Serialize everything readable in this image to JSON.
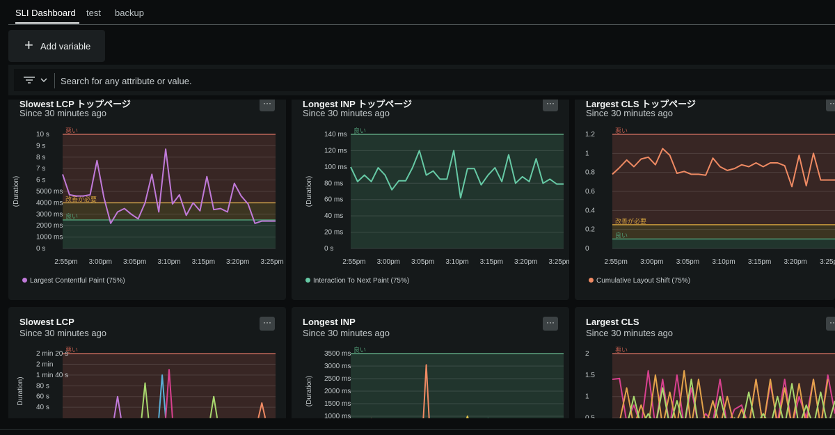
{
  "tabs": [
    {
      "label": "SLI Dashboard",
      "active": true
    },
    {
      "label": "test",
      "active": false
    },
    {
      "label": "backup",
      "active": false
    }
  ],
  "toolbar": {
    "add_variable_label": "Add variable"
  },
  "filter": {
    "placeholder": "Search for any attribute or value."
  },
  "menu_label": "···",
  "colors": {
    "bad": "#b8584a",
    "needs": "#c99a3c",
    "good": "#4f9a74",
    "lcp": "#c07ad9",
    "inp": "#66c9a5",
    "cls": "#ef8a63"
  },
  "panels": [
    {
      "title": "Slowest LCP トップページ",
      "subtitle": "Since 30 minutes ago",
      "ylabel": "(Duration)",
      "legend": "Largest Contentful Paint (75%)",
      "legend_color": "#c07ad9"
    },
    {
      "title": "Longest INP トップページ",
      "subtitle": "Since 30 minutes ago",
      "ylabel": "(Duration)",
      "legend": "Interaction To Next Paint (75%)",
      "legend_color": "#66c9a5"
    },
    {
      "title": "Largest CLS トップページ",
      "subtitle": "Since 30 minutes ago",
      "ylabel": "",
      "legend": "Cumulative Layout Shift (75%)",
      "legend_color": "#ef8a63"
    },
    {
      "title": "Slowest LCP",
      "subtitle": "Since 30 minutes ago",
      "ylabel": "Duration)"
    },
    {
      "title": "Longest INP",
      "subtitle": "Since 30 minutes ago",
      "ylabel": "(Duration)"
    },
    {
      "title": "Largest CLS",
      "subtitle": "Since 30 minutes ago",
      "ylabel": ""
    }
  ],
  "chart_data": [
    {
      "type": "line",
      "panel": "Slowest LCP トップページ",
      "yticks": [
        "10 s",
        "9 s",
        "8 s",
        "7 s",
        "6 s",
        "5000 ms",
        "4000 ms",
        "3000 ms",
        "2000 ms",
        "1000 ms",
        "0 s"
      ],
      "ytick_values": [
        10000,
        9000,
        8000,
        7000,
        6000,
        5000,
        4000,
        3000,
        2000,
        1000,
        0
      ],
      "ylim": [
        0,
        10000
      ],
      "xticks": [
        "2:55pm",
        "3:00pm",
        "3:05pm",
        "3:10pm",
        "3:15pm",
        "3:20pm",
        "3:25pm"
      ],
      "xlim": [
        -3,
        28
      ],
      "zones": [
        {
          "label": "悪い",
          "from": 4000,
          "to": 10000,
          "color": "#b8584a"
        },
        {
          "label": "改善が必要",
          "from": 2500,
          "to": 4000,
          "color": "#c99a3c"
        },
        {
          "label": "良い",
          "from": 0,
          "to": 2500,
          "color": "#4f9a74"
        }
      ],
      "series": [
        {
          "name": "Largest Contentful Paint (75%)",
          "color": "#c07ad9",
          "x": [
            -3,
            -2,
            -1,
            0,
            1,
            2,
            3,
            4,
            5,
            6,
            7,
            8,
            9,
            10,
            11,
            12,
            13,
            14,
            15,
            16,
            17,
            18,
            19,
            20,
            21,
            22,
            23,
            24,
            25,
            26,
            27,
            28
          ],
          "values": [
            6500,
            4700,
            4600,
            4600,
            4700,
            7700,
            4500,
            2200,
            3200,
            3500,
            3000,
            2600,
            4000,
            6500,
            3200,
            8700,
            3900,
            4700,
            2900,
            4000,
            3300,
            6300,
            3400,
            3500,
            3200,
            5700,
            4600,
            3900,
            2200,
            2400,
            2400,
            2400
          ]
        }
      ]
    },
    {
      "type": "line",
      "panel": "Longest INP トップページ",
      "yticks": [
        "140 ms",
        "120 ms",
        "100 ms",
        "80 ms",
        "60 ms",
        "40 ms",
        "20 ms",
        "0 s"
      ],
      "ytick_values": [
        140,
        120,
        100,
        80,
        60,
        40,
        20,
        0
      ],
      "ylim": [
        0,
        140
      ],
      "xticks": [
        "2:55pm",
        "3:00pm",
        "3:05pm",
        "3:10pm",
        "3:15pm",
        "3:20pm",
        "3:25pm"
      ],
      "xlim": [
        -3,
        28
      ],
      "zones": [
        {
          "label": "良い",
          "from": 0,
          "to": 140,
          "color": "#4f9a74"
        }
      ],
      "series": [
        {
          "name": "Interaction To Next Paint (75%)",
          "color": "#66c9a5",
          "x": [
            -3,
            -2,
            -1,
            0,
            1,
            2,
            3,
            4,
            5,
            6,
            7,
            8,
            9,
            10,
            11,
            12,
            13,
            14,
            15,
            16,
            17,
            18,
            19,
            20,
            21,
            22,
            23,
            24,
            25,
            26,
            27,
            28
          ],
          "values": [
            100,
            82,
            90,
            82,
            99,
            90,
            72,
            83,
            83,
            99,
            120,
            90,
            95,
            85,
            85,
            120,
            62,
            98,
            98,
            78,
            90,
            99,
            82,
            115,
            80,
            88,
            82,
            110,
            80,
            85,
            79,
            79
          ]
        }
      ]
    },
    {
      "type": "line",
      "panel": "Largest CLS トップページ",
      "yticks": [
        "1.2",
        "1",
        "0.8",
        "0.6",
        "0.4",
        "0.2",
        "0"
      ],
      "ytick_values": [
        1.2,
        1,
        0.8,
        0.6,
        0.4,
        0.2,
        0
      ],
      "ylim": [
        0,
        1.2
      ],
      "xticks": [
        "2:55pm",
        "3:00pm",
        "3:05pm",
        "3:10pm",
        "3:15pm",
        "3:20pm",
        "3:25pm"
      ],
      "xlim": [
        -3,
        28
      ],
      "zones": [
        {
          "label": "悪い",
          "from": 0.25,
          "to": 1.2,
          "color": "#b8584a"
        },
        {
          "label": "改善が必要",
          "from": 0.1,
          "to": 0.25,
          "color": "#c99a3c"
        },
        {
          "label": "良い",
          "from": 0,
          "to": 0.1,
          "color": "#4f9a74"
        }
      ],
      "series": [
        {
          "name": "Cumulative Layout Shift (75%)",
          "color": "#ef8a63",
          "x": [
            -3,
            -2,
            -1,
            0,
            1,
            2,
            3,
            4,
            5,
            6,
            7,
            8,
            9,
            10,
            11,
            12,
            13,
            14,
            15,
            16,
            17,
            18,
            19,
            20,
            21,
            22,
            23,
            24,
            25,
            26,
            27,
            28
          ],
          "values": [
            0.78,
            0.85,
            0.93,
            0.86,
            0.94,
            0.96,
            0.88,
            1.05,
            0.98,
            0.79,
            0.81,
            0.78,
            0.78,
            0.77,
            0.95,
            0.86,
            0.82,
            0.84,
            0.88,
            0.86,
            0.9,
            0.86,
            0.9,
            0.9,
            0.87,
            0.65,
            0.98,
            0.66,
            1.0,
            0.72,
            0.72,
            0.72
          ]
        }
      ]
    },
    {
      "type": "line",
      "panel": "Slowest LCP",
      "yticks": [
        "2 min 20 s",
        "2 min",
        "1 min 40 s",
        "80 s",
        "60 s",
        "40 s"
      ],
      "ytick_values": [
        140,
        120,
        100,
        80,
        60,
        40
      ],
      "ylim": [
        0,
        140
      ],
      "zones": [
        {
          "label": "悪い",
          "from": 4,
          "to": 140,
          "color": "#b8584a"
        }
      ],
      "series": [
        {
          "color": "#c07ad9",
          "x": [
            4.5,
            5,
            5.5
          ],
          "values": [
            20,
            60,
            20
          ]
        },
        {
          "color": "#a8d86e",
          "x": [
            8.5,
            9,
            9.5
          ],
          "values": [
            20,
            85,
            20
          ]
        },
        {
          "color": "#5ab0d8",
          "x": [
            11,
            11.5,
            12
          ],
          "values": [
            20,
            100,
            20
          ]
        },
        {
          "color": "#d8418f",
          "x": [
            12,
            12.5,
            13
          ],
          "values": [
            20,
            110,
            20
          ]
        },
        {
          "color": "#a8d86e",
          "x": [
            18.5,
            19,
            19.5
          ],
          "values": [
            20,
            60,
            20
          ]
        },
        {
          "color": "#ef8a63",
          "x": [
            25.5,
            26,
            26.5
          ],
          "values": [
            20,
            48,
            20
          ]
        }
      ]
    },
    {
      "type": "line",
      "panel": "Longest INP",
      "yticks": [
        "3500 ms",
        "3000 ms",
        "2500 ms",
        "2000 ms",
        "1500 ms",
        "1000 ms"
      ],
      "ytick_values": [
        3500,
        3000,
        2500,
        2000,
        1500,
        1000
      ],
      "ylim": [
        500,
        3500
      ],
      "zones": [
        {
          "label": "良い",
          "from": 500,
          "to": 3500,
          "color": "#4f9a74"
        }
      ],
      "series": [
        {
          "color": "#ef8a63",
          "x": [
            -0.5,
            0,
            0.5
          ],
          "values": [
            500,
            900,
            500
          ]
        },
        {
          "color": "#66c9a5",
          "x": [
            0.5,
            1,
            1.5
          ],
          "values": [
            500,
            850,
            500
          ]
        },
        {
          "color": "#ef8a63",
          "x": [
            7.5,
            8,
            8.5
          ],
          "values": [
            500,
            3050,
            500
          ]
        },
        {
          "color": "#e0c34a",
          "x": [
            13.5,
            14,
            14.5
          ],
          "values": [
            500,
            1000,
            500
          ]
        },
        {
          "color": "#66c9a5",
          "x": [
            16.5,
            17,
            17.5
          ],
          "values": [
            500,
            900,
            500
          ]
        }
      ]
    },
    {
      "type": "line",
      "panel": "Largest CLS",
      "yticks": [
        "2",
        "1.5",
        "1",
        "0.5"
      ],
      "ytick_values": [
        2,
        1.5,
        1,
        0.5
      ],
      "ylim": [
        0.25,
        2
      ],
      "zones": [
        {
          "label": "悪い",
          "from": 0.25,
          "to": 2,
          "color": "#b8584a"
        }
      ],
      "series": [
        {
          "color": "#d8418f",
          "x": [
            -3,
            -2,
            -1,
            0,
            1,
            2,
            3,
            4,
            5,
            6,
            7,
            8,
            9,
            10,
            11,
            12,
            13,
            14,
            15,
            16,
            17,
            18,
            19,
            20,
            21,
            22,
            23,
            24,
            25,
            26,
            27,
            28
          ],
          "values": [
            1.4,
            1.42,
            0.4,
            0.8,
            0.3,
            1.6,
            0.3,
            1.4,
            0.3,
            1.5,
            0.3,
            1.2,
            0.3,
            0.6,
            0.4,
            1.4,
            0.3,
            0.7,
            0.8,
            0.3,
            1.4,
            0.3,
            1.3,
            0.4,
            1.4,
            0.3,
            1.0,
            0.5,
            1.4,
            0.3,
            1.5,
            0.6
          ]
        },
        {
          "color": "#e3a24a",
          "x": [
            -2,
            -1,
            0,
            1,
            2,
            3,
            4,
            5,
            6,
            7,
            8,
            9,
            10,
            11,
            12,
            13,
            14,
            15,
            16,
            17,
            18,
            19,
            20,
            21,
            22,
            23,
            24,
            25,
            26,
            27
          ],
          "values": [
            0.4,
            1.2,
            0.3,
            0.8,
            0.3,
            1.5,
            0.3,
            1.1,
            0.3,
            1.6,
            0.3,
            1.4,
            0.3,
            0.9,
            0.3,
            1.0,
            0.3,
            0.7,
            0.3,
            1.4,
            0.3,
            1.4,
            0.3,
            1.2,
            0.3,
            1.3,
            0.3,
            1.4,
            0.3,
            1.4
          ]
        },
        {
          "color": "#a8d86e",
          "x": [
            -1,
            0,
            1,
            2,
            3,
            4,
            5,
            6,
            7,
            8,
            9,
            10,
            11,
            12,
            13,
            14,
            15,
            16,
            17,
            18,
            19,
            20,
            21,
            22,
            23,
            24,
            25,
            26,
            27,
            28
          ],
          "values": [
            0.3,
            1.0,
            0.3,
            0.6,
            0.3,
            1.2,
            0.3,
            0.9,
            0.3,
            1.4,
            0.3,
            0.4,
            0.3,
            1.0,
            0.3,
            0.5,
            0.3,
            1.1,
            0.3,
            0.6,
            0.3,
            1.0,
            0.3,
            1.3,
            0.3,
            0.8,
            0.3,
            1.1,
            0.3,
            0.9
          ]
        }
      ]
    }
  ]
}
